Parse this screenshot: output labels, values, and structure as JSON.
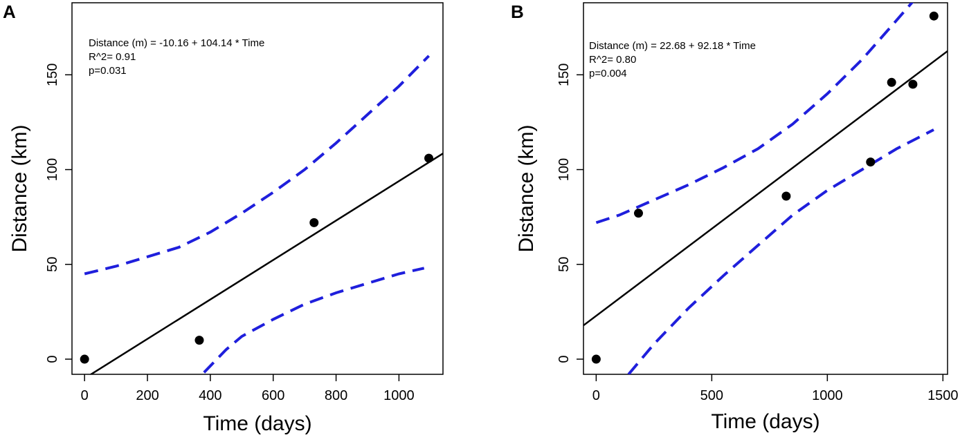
{
  "chart_data": [
    {
      "type": "scatter",
      "panel": "A",
      "xlabel": "Time (days)",
      "ylabel": "Distance (km)",
      "xlim": [
        -40,
        1140
      ],
      "ylim": [
        -8,
        188
      ],
      "xticks": [
        0,
        200,
        400,
        600,
        800,
        1000
      ],
      "yticks": [
        0,
        50,
        100,
        150
      ],
      "annotation": [
        "Distance (m) = -10.16 + 104.14 * Time",
        "R^2= 0.91",
        "p=0.031"
      ],
      "points": [
        {
          "x": 0,
          "y": 0
        },
        {
          "x": 365,
          "y": 10
        },
        {
          "x": 730,
          "y": 72
        },
        {
          "x": 1095,
          "y": 106
        }
      ],
      "fit_line": [
        {
          "x": -40,
          "y": -14.3
        },
        {
          "x": 1140,
          "y": 108.5
        }
      ],
      "ci_upper": [
        {
          "x": 0,
          "y": 45
        },
        {
          "x": 100,
          "y": 49
        },
        {
          "x": 200,
          "y": 54
        },
        {
          "x": 300,
          "y": 59
        },
        {
          "x": 400,
          "y": 67
        },
        {
          "x": 500,
          "y": 77
        },
        {
          "x": 600,
          "y": 88
        },
        {
          "x": 700,
          "y": 100
        },
        {
          "x": 800,
          "y": 114
        },
        {
          "x": 900,
          "y": 129
        },
        {
          "x": 1000,
          "y": 144
        },
        {
          "x": 1095,
          "y": 160
        }
      ],
      "ci_lower": [
        {
          "x": 380,
          "y": -7
        },
        {
          "x": 450,
          "y": 5
        },
        {
          "x": 500,
          "y": 12
        },
        {
          "x": 600,
          "y": 21
        },
        {
          "x": 700,
          "y": 29
        },
        {
          "x": 800,
          "y": 35
        },
        {
          "x": 900,
          "y": 40
        },
        {
          "x": 1000,
          "y": 45
        },
        {
          "x": 1080,
          "y": 48
        }
      ]
    },
    {
      "type": "scatter",
      "panel": "B",
      "xlabel": "Time (days)",
      "ylabel": "Distance (km)",
      "xlim": [
        -55,
        1520
      ],
      "ylim": [
        -8,
        188
      ],
      "xticks": [
        0,
        500,
        1000,
        1500
      ],
      "yticks": [
        0,
        50,
        100,
        150
      ],
      "annotation": [
        "Distance (m) = 22.68 + 92.18 * Time",
        "R^2= 0.80",
        "p=0.004"
      ],
      "points": [
        {
          "x": 0,
          "y": 0
        },
        {
          "x": 183,
          "y": 77
        },
        {
          "x": 822,
          "y": 86
        },
        {
          "x": 1187,
          "y": 104
        },
        {
          "x": 1278,
          "y": 146
        },
        {
          "x": 1370,
          "y": 145
        },
        {
          "x": 1461,
          "y": 181
        }
      ],
      "fit_line": [
        {
          "x": -55,
          "y": 17.8
        },
        {
          "x": 1520,
          "y": 162.5
        }
      ],
      "ci_upper": [
        {
          "x": 0,
          "y": 72
        },
        {
          "x": 100,
          "y": 76
        },
        {
          "x": 250,
          "y": 84
        },
        {
          "x": 400,
          "y": 92
        },
        {
          "x": 550,
          "y": 101
        },
        {
          "x": 700,
          "y": 111
        },
        {
          "x": 850,
          "y": 124
        },
        {
          "x": 1000,
          "y": 140
        },
        {
          "x": 1150,
          "y": 158
        },
        {
          "x": 1280,
          "y": 176
        },
        {
          "x": 1380,
          "y": 190
        }
      ],
      "ci_lower": [
        {
          "x": 140,
          "y": -8
        },
        {
          "x": 250,
          "y": 8
        },
        {
          "x": 400,
          "y": 27
        },
        {
          "x": 550,
          "y": 44
        },
        {
          "x": 700,
          "y": 60
        },
        {
          "x": 850,
          "y": 76
        },
        {
          "x": 1000,
          "y": 89
        },
        {
          "x": 1150,
          "y": 100
        },
        {
          "x": 1300,
          "y": 111
        },
        {
          "x": 1460,
          "y": 121
        }
      ]
    }
  ]
}
